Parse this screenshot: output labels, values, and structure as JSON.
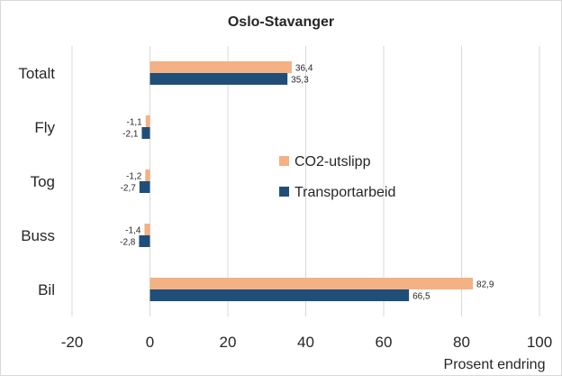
{
  "chart_data": {
    "type": "bar",
    "orientation": "horizontal",
    "title": "Oslo-Stavanger",
    "xlabel": "Prosent  endring",
    "ylabel": "",
    "categories": [
      "Totalt",
      "Fly",
      "Tog",
      "Buss",
      "Bil"
    ],
    "series": [
      {
        "name": "CO2-utslipp",
        "color": "#f4b183",
        "values": [
          36.4,
          -1.1,
          -1.2,
          -1.4,
          82.9
        ],
        "labels": [
          "36,4",
          "-1,1",
          "-1,2",
          "-1,4",
          "82,9"
        ]
      },
      {
        "name": "Transportarbeid",
        "color": "#1f4e79",
        "values": [
          35.3,
          -2.1,
          -2.7,
          -2.8,
          66.5
        ],
        "labels": [
          "35,3",
          "-2,1",
          "-2,7",
          "-2,8",
          "66,5"
        ]
      }
    ],
    "xlim": [
      -20,
      100
    ],
    "xticks": [
      -20,
      0,
      20,
      40,
      60,
      80,
      100
    ],
    "xtick_labels": [
      "-20",
      "0",
      "20",
      "40",
      "60",
      "80",
      "100"
    ],
    "grid": "vertical",
    "legend_position": "right"
  }
}
